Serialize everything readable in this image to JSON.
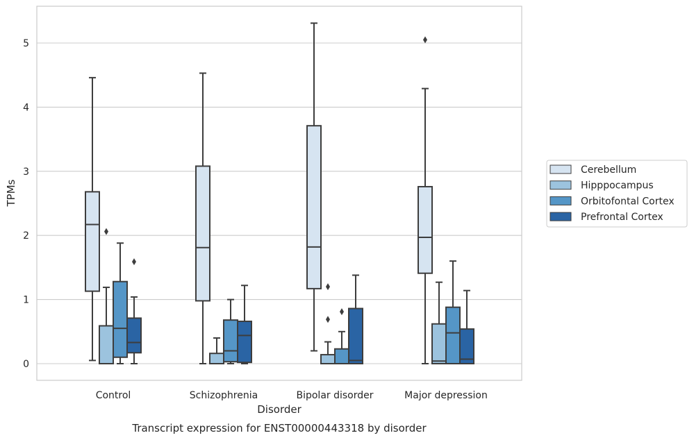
{
  "chart_data": {
    "type": "box",
    "caption": "Transcript expression for ENST00000443318 by disorder",
    "xlabel": "Disorder",
    "ylabel": "TPMs",
    "ylim": [
      -0.25,
      5.6
    ],
    "yticks": [
      0,
      1,
      2,
      3,
      4,
      5
    ],
    "grid": "horizontal",
    "legend_position": "right",
    "categories": [
      "Control",
      "Schizophrenia",
      "Bipolar disorder",
      "Major depression"
    ],
    "series": [
      {
        "name": "Cerebellum",
        "color": "#d6e4f1",
        "boxes": [
          {
            "whislo": 0.05,
            "q1": 1.13,
            "med": 2.17,
            "q3": 2.68,
            "whishi": 4.46,
            "fliers": []
          },
          {
            "whislo": 0.0,
            "q1": 0.98,
            "med": 1.81,
            "q3": 3.08,
            "whishi": 4.53,
            "fliers": []
          },
          {
            "whislo": 0.2,
            "q1": 1.17,
            "med": 1.82,
            "q3": 3.71,
            "whishi": 5.31,
            "fliers": []
          },
          {
            "whislo": 0.0,
            "q1": 1.41,
            "med": 1.97,
            "q3": 2.76,
            "whishi": 4.29,
            "fliers": [
              5.05
            ]
          }
        ]
      },
      {
        "name": "Hipppocampus",
        "color": "#9cc3de",
        "boxes": [
          {
            "whislo": 0.0,
            "q1": 0.0,
            "med": 0.0,
            "q3": 0.59,
            "whishi": 1.19,
            "fliers": [
              2.06
            ]
          },
          {
            "whislo": 0.0,
            "q1": 0.0,
            "med": 0.0,
            "q3": 0.16,
            "whishi": 0.4,
            "fliers": []
          },
          {
            "whislo": 0.0,
            "q1": 0.0,
            "med": 0.0,
            "q3": 0.14,
            "whishi": 0.34,
            "fliers": [
              0.69,
              1.2
            ]
          },
          {
            "whislo": 0.0,
            "q1": 0.0,
            "med": 0.04,
            "q3": 0.62,
            "whishi": 1.27,
            "fliers": []
          }
        ]
      },
      {
        "name": "Orbitofontal Cortex",
        "color": "#5596c7",
        "boxes": [
          {
            "whislo": 0.0,
            "q1": 0.1,
            "med": 0.55,
            "q3": 1.28,
            "whishi": 1.88,
            "fliers": []
          },
          {
            "whislo": 0.0,
            "q1": 0.03,
            "med": 0.2,
            "q3": 0.68,
            "whishi": 1.0,
            "fliers": []
          },
          {
            "whislo": 0.0,
            "q1": 0.0,
            "med": 0.0,
            "q3": 0.23,
            "whishi": 0.5,
            "fliers": [
              0.81
            ]
          },
          {
            "whislo": 0.0,
            "q1": 0.0,
            "med": 0.48,
            "q3": 0.88,
            "whishi": 1.6,
            "fliers": []
          }
        ]
      },
      {
        "name": "Prefrontal Cortex",
        "color": "#2a64a4",
        "boxes": [
          {
            "whislo": 0.0,
            "q1": 0.17,
            "med": 0.33,
            "q3": 0.71,
            "whishi": 1.04,
            "fliers": [
              1.59
            ]
          },
          {
            "whislo": 0.0,
            "q1": 0.02,
            "med": 0.44,
            "q3": 0.66,
            "whishi": 1.22,
            "fliers": []
          },
          {
            "whislo": 0.0,
            "q1": 0.0,
            "med": 0.05,
            "q3": 0.86,
            "whishi": 1.38,
            "fliers": []
          },
          {
            "whislo": 0.0,
            "q1": 0.0,
            "med": 0.07,
            "q3": 0.54,
            "whishi": 1.14,
            "fliers": []
          }
        ]
      }
    ]
  }
}
